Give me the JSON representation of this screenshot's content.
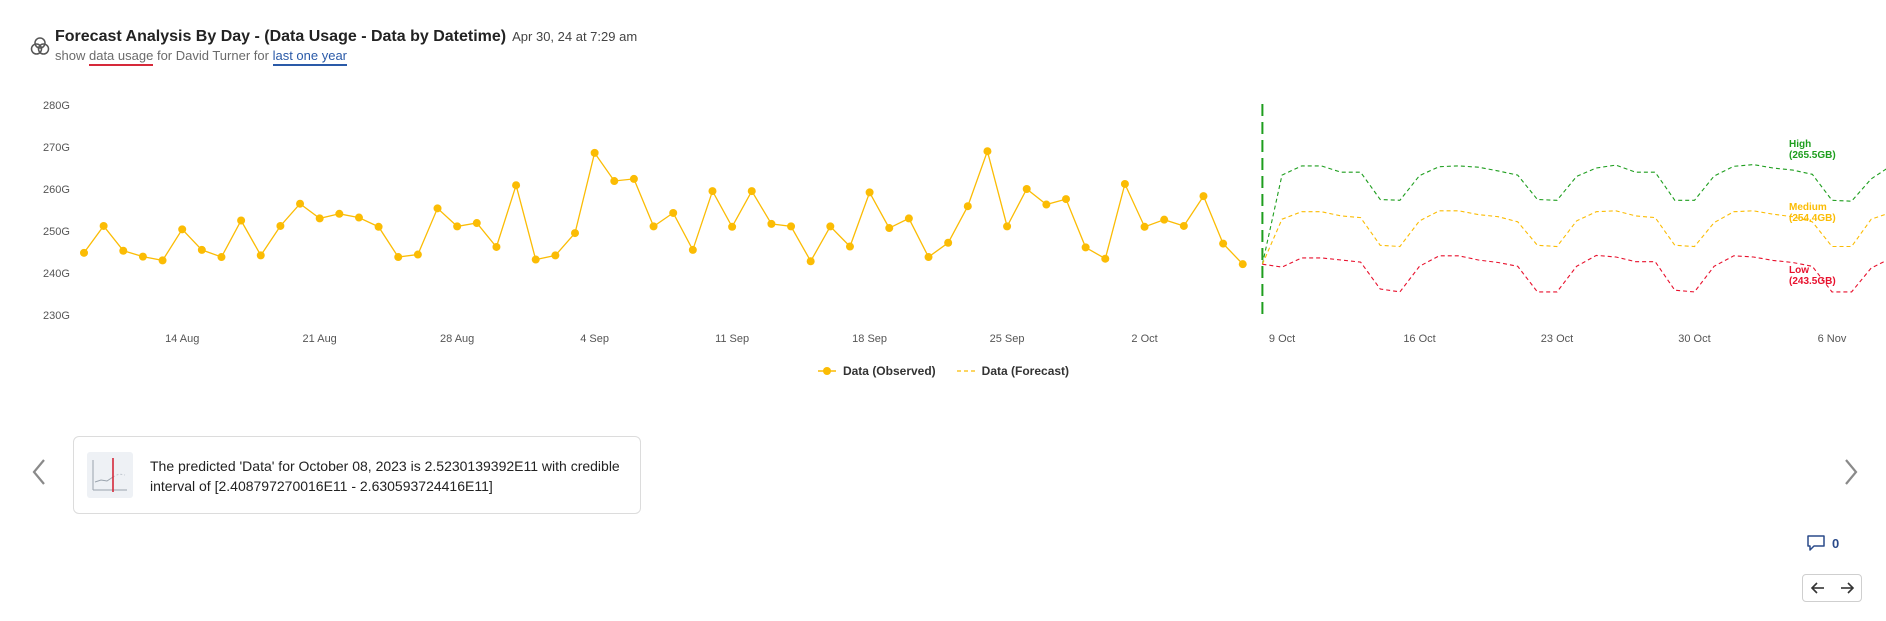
{
  "header": {
    "title": "Forecast Analysis By Day - (Data Usage - Data by Datetime)",
    "timestamp": "Apr 30, 24 at 7:29 am",
    "subtitle_prefix": "show",
    "subtitle_keyword": "data usage",
    "subtitle_middle": "for David Turner for",
    "subtitle_timeframe": "last one year"
  },
  "legend": {
    "observed_label": "Data (Observed)",
    "forecast_label": "Data (Forecast)"
  },
  "insight": {
    "text": "The predicted 'Data' for October 08, 2023 is 2.5230139392E11 with credible interval of [2.408797270016E11 - 2.630593724416E11]"
  },
  "comments": {
    "count": "0"
  },
  "colors": {
    "observed": "#fbbc04",
    "forecast_medium": "#fbbc04",
    "forecast_high": "#1e9e1e",
    "forecast_low": "#e8112d",
    "divider": "#1e9e1e"
  },
  "icons": {
    "logo": "venn-circles-icon",
    "prev": "chevron-left-icon",
    "next": "chevron-right-icon",
    "comment": "comment-icon",
    "pager_prev": "arrow-left-icon",
    "pager_next": "arrow-right-icon"
  },
  "chart_data": {
    "type": "line",
    "x_start": "2023-08-09",
    "y_unit": "G",
    "ylim": [
      230,
      280
    ],
    "y_ticks": [
      230,
      240,
      250,
      260,
      270,
      280
    ],
    "y_tick_labels": [
      "230G",
      "240G",
      "250G",
      "260G",
      "270G",
      "280G"
    ],
    "x_tick_labels": [
      {
        "day": 5,
        "label": "14 Aug"
      },
      {
        "day": 12,
        "label": "21 Aug"
      },
      {
        "day": 19,
        "label": "28 Aug"
      },
      {
        "day": 26,
        "label": "4 Sep"
      },
      {
        "day": 33,
        "label": "11 Sep"
      },
      {
        "day": 40,
        "label": "18 Sep"
      },
      {
        "day": 47,
        "label": "25 Sep"
      },
      {
        "day": 54,
        "label": "2 Oct"
      },
      {
        "day": 61,
        "label": "9 Oct"
      },
      {
        "day": 68,
        "label": "16 Oct"
      },
      {
        "day": 75,
        "label": "23 Oct"
      },
      {
        "day": 82,
        "label": "30 Oct"
      },
      {
        "day": 89,
        "label": "6 Nov"
      }
    ],
    "forecast_start_day": 60,
    "series": [
      {
        "name": "Data (Observed)",
        "kind": "observed",
        "start_day": 0,
        "values": [
          244.8,
          251.2,
          245.3,
          243.9,
          243,
          250.4,
          245.5,
          243.8,
          252.5,
          244.2,
          251.2,
          256.5,
          253,
          254.1,
          253.2,
          251,
          243.8,
          244.4,
          255.4,
          251.1,
          251.9,
          246.2,
          260.9,
          243.2,
          244.2,
          249.5,
          268.6,
          261.9,
          262.4,
          251.1,
          254.3,
          245.5,
          259.5,
          251,
          259.5,
          251.7,
          251.1,
          242.8,
          251.1,
          246.3,
          259.2,
          250.7,
          253,
          243.8,
          247.2,
          255.9,
          269,
          251.1,
          260,
          256.3,
          257.6,
          246.1,
          243.4,
          261.2,
          251,
          252.7,
          251.2,
          258.3,
          247,
          242.1
        ]
      },
      {
        "name": "High (265.5GB)",
        "kind": "high",
        "start_day": 60,
        "values": [
          242.1,
          263.3,
          265.5,
          265.5,
          264,
          264,
          257.5,
          257.3,
          263.2,
          265.3,
          265.5,
          265.2,
          264.3,
          263.3,
          257.5,
          257.3,
          263,
          265,
          265.7,
          264,
          264,
          257.3,
          257.3,
          263.1,
          265.4,
          265.8,
          265,
          264.5,
          263.5,
          257.3,
          257.1,
          262.4,
          265.5
        ]
      },
      {
        "name": "Medium (254.4GB)",
        "kind": "medium",
        "start_day": 60,
        "values": [
          242.1,
          252.8,
          254.6,
          254.6,
          253.6,
          253.2,
          246.6,
          246.3,
          252.4,
          254.8,
          254.8,
          253.9,
          253.4,
          252.2,
          246.6,
          246.3,
          252.4,
          254.6,
          254.8,
          253.6,
          253.2,
          246.6,
          246.3,
          252,
          254.6,
          254.8,
          254,
          253.4,
          252.2,
          246.3,
          246.3,
          252.8,
          254.4
        ]
      },
      {
        "name": "Low (243.5GB)",
        "kind": "low",
        "start_day": 60,
        "values": [
          242.1,
          241.4,
          243.6,
          243.6,
          243.1,
          242.6,
          236.2,
          235.5,
          241.6,
          244.1,
          244.1,
          243.1,
          242.5,
          241.6,
          235.5,
          235.5,
          241.6,
          244.2,
          243.8,
          242.7,
          242.7,
          235.9,
          235.5,
          241.6,
          244.1,
          243.8,
          243,
          242.5,
          241.6,
          235.5,
          235.5,
          241.2,
          243.5
        ]
      }
    ],
    "band_labels": {
      "high": [
        "High",
        "(265.5GB)"
      ],
      "medium": [
        "Medium",
        "(254.4GB)"
      ],
      "low": [
        "Low",
        "(243.5GB)"
      ]
    }
  }
}
